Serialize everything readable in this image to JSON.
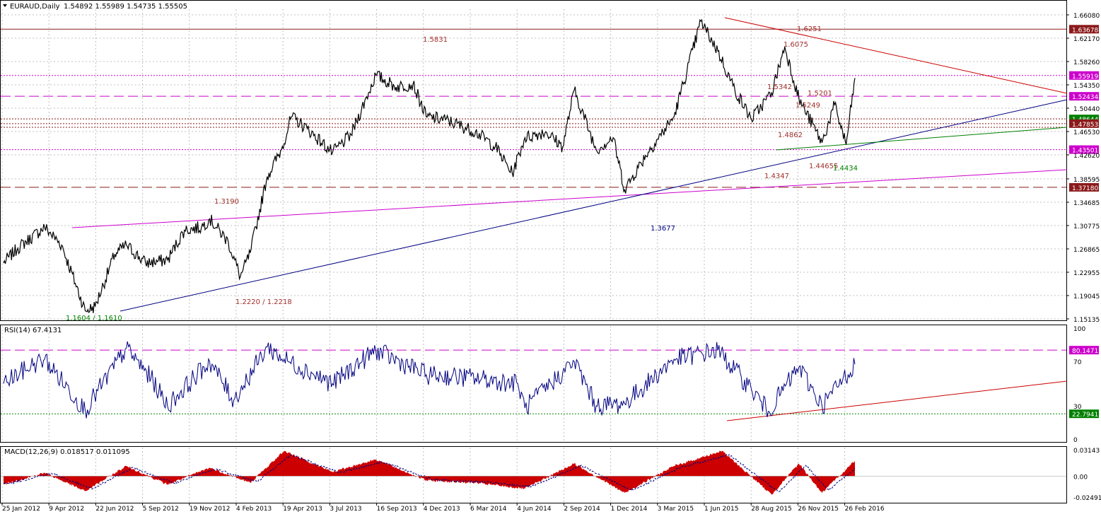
{
  "header": {
    "symbol": "EURAUD,Daily",
    "ohlc": "1.54892 1.55989 1.54735 1.55505"
  },
  "colors": {
    "price": "#000000",
    "resistance": "#8b1a1a",
    "pink": "#cc00cc",
    "blue": "#000080",
    "green": "#008000",
    "red": "#cc0000",
    "grid": "#c0c0c0",
    "annot": "#a0302a"
  },
  "chart_data": [
    {
      "type": "line",
      "panel": "price",
      "x": [
        "2012-01-25",
        "2012-02-20",
        "2012-04-09",
        "2012-05-10",
        "2012-06-22",
        "2012-07-10",
        "2012-08-15",
        "2012-09-05",
        "2012-10-10",
        "2012-11-19",
        "2012-12-20",
        "2013-01-20",
        "2013-02-04",
        "2013-03-10",
        "2013-04-01",
        "2013-04-19",
        "2013-05-20",
        "2013-06-15",
        "2013-07-03",
        "2013-08-01",
        "2013-09-16",
        "2013-10-20",
        "2013-12-04",
        "2014-01-10",
        "2014-02-10",
        "2014-03-06",
        "2014-04-10",
        "2014-06-04",
        "2014-07-10",
        "2014-08-10",
        "2014-09-02",
        "2014-10-10",
        "2014-11-10",
        "2014-12-01",
        "2015-01-10",
        "2015-02-10",
        "2015-03-03",
        "2015-04-10",
        "2015-06-01",
        "2015-07-20",
        "2015-08-20",
        "2015-09-20",
        "2015-10-20",
        "2015-11-26",
        "2015-12-20",
        "2016-01-15",
        "2016-02-26",
        "2016-03-20",
        "2016-04-10",
        "2016-04-26"
      ],
      "y": [
        1.245,
        1.27,
        1.305,
        1.275,
        1.165,
        1.172,
        1.26,
        1.275,
        1.245,
        1.25,
        1.3,
        1.305,
        1.319,
        1.28,
        1.222,
        1.262,
        1.39,
        1.435,
        1.49,
        1.47,
        1.43,
        1.46,
        1.56,
        1.54,
        1.545,
        1.49,
        1.485,
        1.465,
        1.44,
        1.395,
        1.455,
        1.465,
        1.44,
        1.535,
        1.435,
        1.455,
        1.3677,
        1.425,
        1.49,
        1.65,
        1.6,
        1.535,
        1.4862,
        1.53,
        1.6075,
        1.52,
        1.4465,
        1.51,
        1.4434,
        1.555
      ],
      "yticks": [
        "1.66080",
        "1.62170",
        "1.58260",
        "1.54350",
        "1.50440",
        "1.46530",
        "1.42620",
        "1.38595",
        "1.34685",
        "1.30775",
        "1.26865",
        "1.22955",
        "1.19045",
        "1.15135"
      ],
      "ylim": [
        1.15135,
        1.6608
      ],
      "hlines": [
        {
          "value": 1.63678,
          "label": "1.63678",
          "style": "solid",
          "color": "#8b1a1a"
        },
        {
          "value": 1.55919,
          "label": "1.55919",
          "style": "dotted",
          "color": "#cc00cc"
        },
        {
          "value": 1.52434,
          "label": "1.52434",
          "style": "dashed",
          "color": "#cc00cc"
        },
        {
          "value": 1.48644,
          "label": "1.48644",
          "style": "dotted",
          "color": "#8b1a1a",
          "badge": "#008000"
        },
        {
          "value": 1.47853,
          "label": "1.47853",
          "style": "dotted",
          "color": "#8b1a1a"
        },
        {
          "value": 1.47248,
          "label": "",
          "style": "dotted",
          "color": "#8b1a1a"
        },
        {
          "value": 1.43501,
          "label": "1.43501",
          "style": "dotted",
          "color": "#cc00cc"
        },
        {
          "value": 1.3718,
          "label": "1.37180",
          "style": "dashed",
          "color": "#8b1a1a"
        }
      ],
      "annotations": [
        {
          "text": "1.5831",
          "color": "#a0302a"
        },
        {
          "text": "1.6251",
          "color": "#a0302a"
        },
        {
          "text": "1.6075",
          "color": "#a0302a"
        },
        {
          "text": "1.5342",
          "color": "#a0302a"
        },
        {
          "text": "1.5249",
          "color": "#a0302a"
        },
        {
          "text": "1.5201",
          "color": "#a0302a"
        },
        {
          "text": "1.4862",
          "color": "#a0302a"
        },
        {
          "text": "1.44655",
          "color": "#a0302a"
        },
        {
          "text": "1.4434",
          "color": "#008000"
        },
        {
          "text": "1.4347",
          "color": "#a0302a"
        },
        {
          "text": "1.3190",
          "color": "#a0302a"
        },
        {
          "text": "1.3677",
          "color": "#000080"
        },
        {
          "text": "1.2220 / 1.2218",
          "color": "#a0302a"
        },
        {
          "text": "1.1604 / 1.1610",
          "color": "#008000"
        }
      ]
    },
    {
      "type": "line",
      "panel": "rsi",
      "title": "RSI(14) 67.4131",
      "x": [
        "2012-01-25",
        "2012-03-15",
        "2012-04-09",
        "2012-06-22",
        "2012-09-05",
        "2012-10-20",
        "2012-11-19",
        "2013-02-04",
        "2013-03-20",
        "2013-05-20",
        "2013-06-20",
        "2013-09-16",
        "2013-12-04",
        "2014-03-06",
        "2014-06-04",
        "2014-08-20",
        "2014-09-02",
        "2014-11-10",
        "2014-12-01",
        "2015-01-10",
        "2015-03-03",
        "2015-06-01",
        "2015-08-20",
        "2015-10-20",
        "2015-11-20",
        "2016-01-15",
        "2016-02-26",
        "2016-04-26"
      ],
      "y": [
        50,
        66,
        72,
        26,
        82,
        55,
        30,
        70,
        35,
        83,
        72,
        50,
        80,
        58,
        55,
        50,
        28,
        60,
        70,
        30,
        32,
        72,
        80,
        45,
        25,
        65,
        30,
        67.4131
      ],
      "yticks": [
        "100",
        "70",
        "30",
        "0"
      ],
      "ylim": [
        0,
        100
      ],
      "hlines": [
        {
          "value": 80.1471,
          "label": "80.1471",
          "color": "#cc00cc"
        },
        {
          "value": 22.7941,
          "label": "22.7941",
          "color": "#008000"
        }
      ]
    },
    {
      "type": "area",
      "panel": "macd",
      "title": "MACD(12,26,9) 0.018517 0.011095",
      "x": [
        "2012-01-25",
        "2012-04-09",
        "2012-06-22",
        "2012-09-05",
        "2012-11-19",
        "2013-02-04",
        "2013-04-19",
        "2013-06-20",
        "2013-09-16",
        "2013-12-04",
        "2014-03-06",
        "2014-06-04",
        "2014-09-02",
        "2014-12-01",
        "2015-03-03",
        "2015-06-01",
        "2015-08-28",
        "2015-11-26",
        "2016-01-15",
        "2016-02-26",
        "2016-04-26"
      ],
      "y": [
        -0.01,
        0.004,
        -0.018,
        0.012,
        -0.01,
        0.01,
        -0.008,
        0.03,
        0.005,
        0.02,
        -0.005,
        -0.008,
        -0.015,
        0.015,
        -0.02,
        0.012,
        0.03,
        -0.022,
        0.015,
        -0.02,
        0.018517
      ],
      "yticks": [
        "0.03143",
        "0.00",
        "-0.02491"
      ],
      "ylim": [
        -0.02491,
        0.03143
      ]
    }
  ],
  "xaxis": {
    "labels": [
      "25 Jan 2012",
      "9 Apr 2012",
      "22 Jun 2012",
      "5 Sep 2012",
      "19 Nov 2012",
      "4 Feb 2013",
      "19 Apr 2013",
      "3 Jul 2013",
      "16 Sep 2013",
      "4 Dec 2013",
      "6 Mar 2014",
      "4 Jun 2014",
      "2 Sep 2014",
      "1 Dec 2014",
      "3 Mar 2015",
      "1 Jun 2015",
      "28 Aug 2015",
      "26 Nov 2015",
      "26 Feb 2016"
    ]
  }
}
